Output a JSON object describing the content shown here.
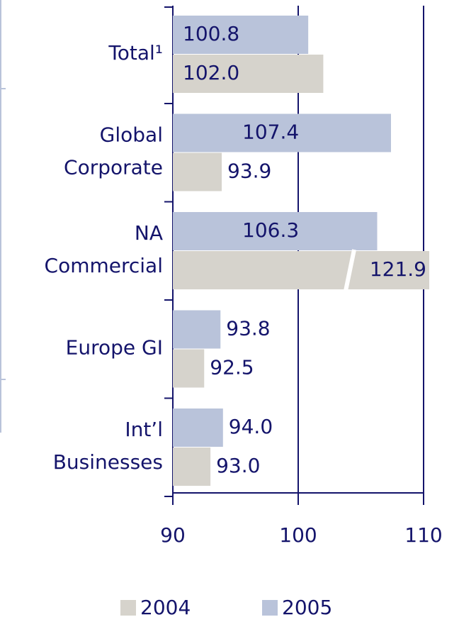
{
  "chart_data": {
    "type": "barh",
    "categories": [
      [
        "Total¹"
      ],
      [
        "Global",
        "Corporate"
      ],
      [
        "NA",
        "Commercial"
      ],
      [
        "Europe GI"
      ],
      [
        "Int’l",
        "Businesses"
      ]
    ],
    "series": [
      {
        "name": "2005",
        "color": "#b9c3da",
        "values": [
          100.8,
          107.4,
          106.3,
          93.8,
          94.0
        ],
        "value_labels": [
          "100.8",
          "107.4",
          "106.3",
          "93.8",
          "94.0"
        ]
      },
      {
        "name": "2004",
        "color": "#d6d3cc",
        "values": [
          102.0,
          93.9,
          121.9,
          92.5,
          93.0
        ],
        "value_labels": [
          "102.0",
          "93.9",
          "121.9",
          "92.5",
          "93.0"
        ]
      }
    ],
    "xlim": [
      90,
      110
    ],
    "xticks": [
      90,
      100,
      110
    ],
    "grid": true
  }
}
